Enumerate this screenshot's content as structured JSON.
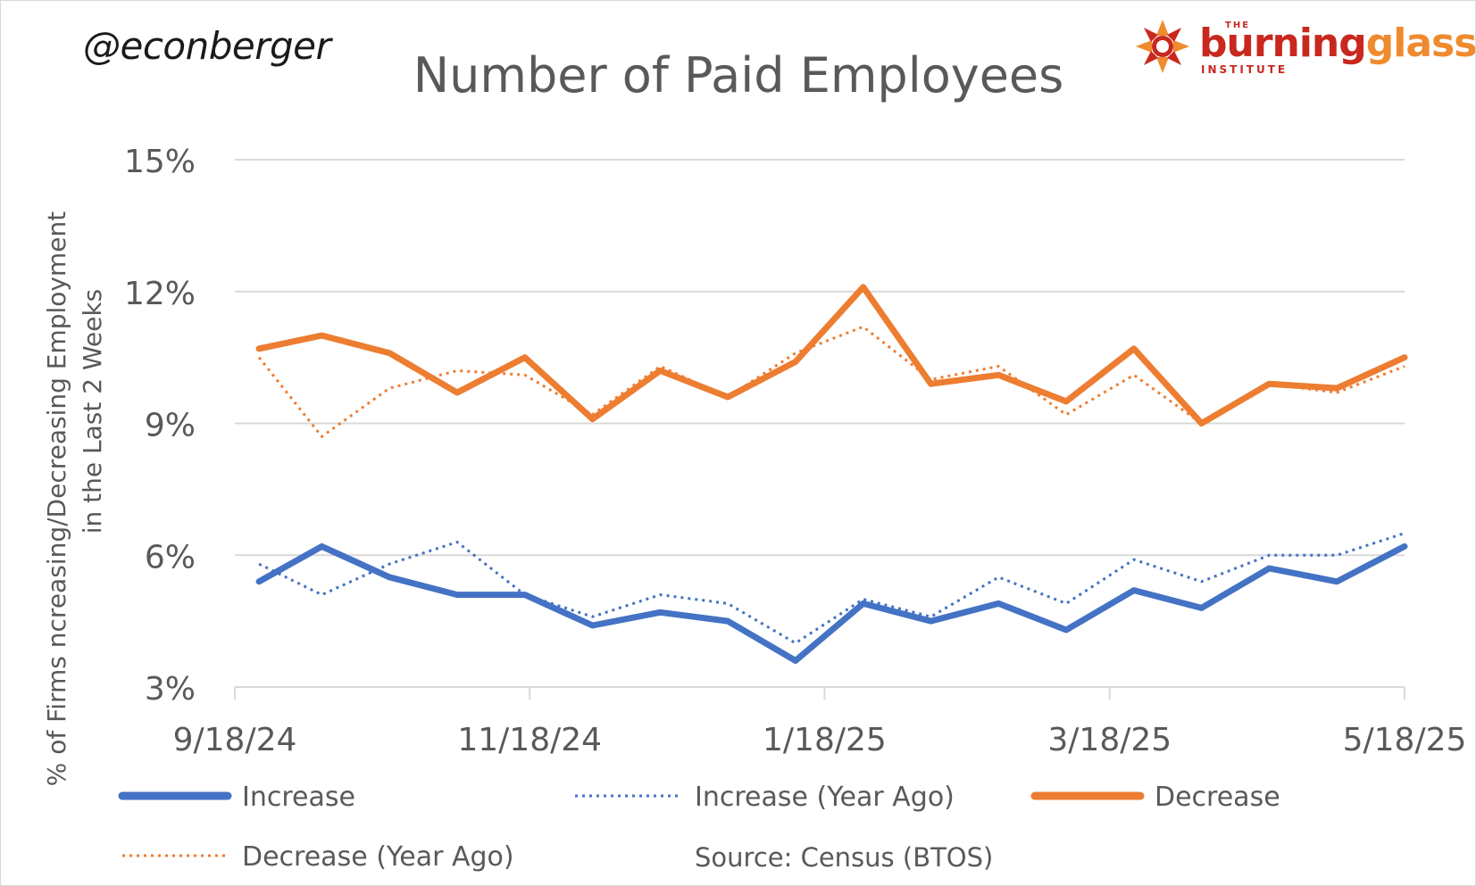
{
  "header": {
    "author": "@econberger",
    "logo": {
      "the": "THE",
      "word_part1": "burning",
      "word_part2": "glass",
      "institute": "INSTITUTE"
    }
  },
  "chart_data": {
    "type": "line",
    "title": "Number of Paid Employees",
    "ylabel_line1": "% of Firms ncreasing/Decreasing Employment",
    "ylabel_line2": "in the Last 2 Weeks",
    "xlabel": "",
    "x_tick_labels": [
      "9/18/24",
      "11/18/24",
      "1/18/25",
      "3/18/25",
      "5/18/25"
    ],
    "y_tick_labels": [
      "3%",
      "6%",
      "9%",
      "12%",
      "15%"
    ],
    "y_ticks": [
      3,
      6,
      9,
      12,
      15
    ],
    "ylim": [
      3,
      15
    ],
    "grid": true,
    "legend_position": "bottom",
    "source": "Source: Census (BTOS)",
    "x_dates": [
      "2024-09-23",
      "2024-10-06",
      "2024-10-20",
      "2024-11-03",
      "2024-11-17",
      "2024-12-01",
      "2024-12-15",
      "2024-12-29",
      "2025-01-12",
      "2025-01-26",
      "2025-02-09",
      "2025-02-23",
      "2025-03-09",
      "2025-03-23",
      "2025-04-06",
      "2025-04-20",
      "2025-05-04",
      "2025-05-18"
    ],
    "series": [
      {
        "name": "Increase",
        "color": "#4472c4",
        "style": "solid",
        "values": [
          5.4,
          6.2,
          5.5,
          5.1,
          5.1,
          4.4,
          4.7,
          4.5,
          3.6,
          4.9,
          4.5,
          4.9,
          4.3,
          5.2,
          4.8,
          5.7,
          5.4,
          6.2
        ]
      },
      {
        "name": "Increase (Year Ago)",
        "color": "#4472c4",
        "style": "dotted",
        "values": [
          5.8,
          5.1,
          5.8,
          6.3,
          5.1,
          4.6,
          5.1,
          4.9,
          4.0,
          5.0,
          4.6,
          5.5,
          4.9,
          5.9,
          5.4,
          6.0,
          6.0,
          6.5
        ]
      },
      {
        "name": "Decrease",
        "color": "#ed7d31",
        "style": "solid",
        "values": [
          10.7,
          11.0,
          10.6,
          9.7,
          10.5,
          9.1,
          10.2,
          9.6,
          10.4,
          12.1,
          9.9,
          10.1,
          9.5,
          10.7,
          9.0,
          9.9,
          9.8,
          10.5
        ]
      },
      {
        "name": "Decrease (Year Ago)",
        "color": "#ed7d31",
        "style": "dotted",
        "values": [
          10.5,
          8.7,
          9.8,
          10.2,
          10.1,
          9.2,
          10.3,
          9.6,
          10.6,
          11.2,
          10.0,
          10.3,
          9.2,
          10.1,
          9.0,
          9.9,
          9.7,
          10.3
        ]
      }
    ]
  }
}
